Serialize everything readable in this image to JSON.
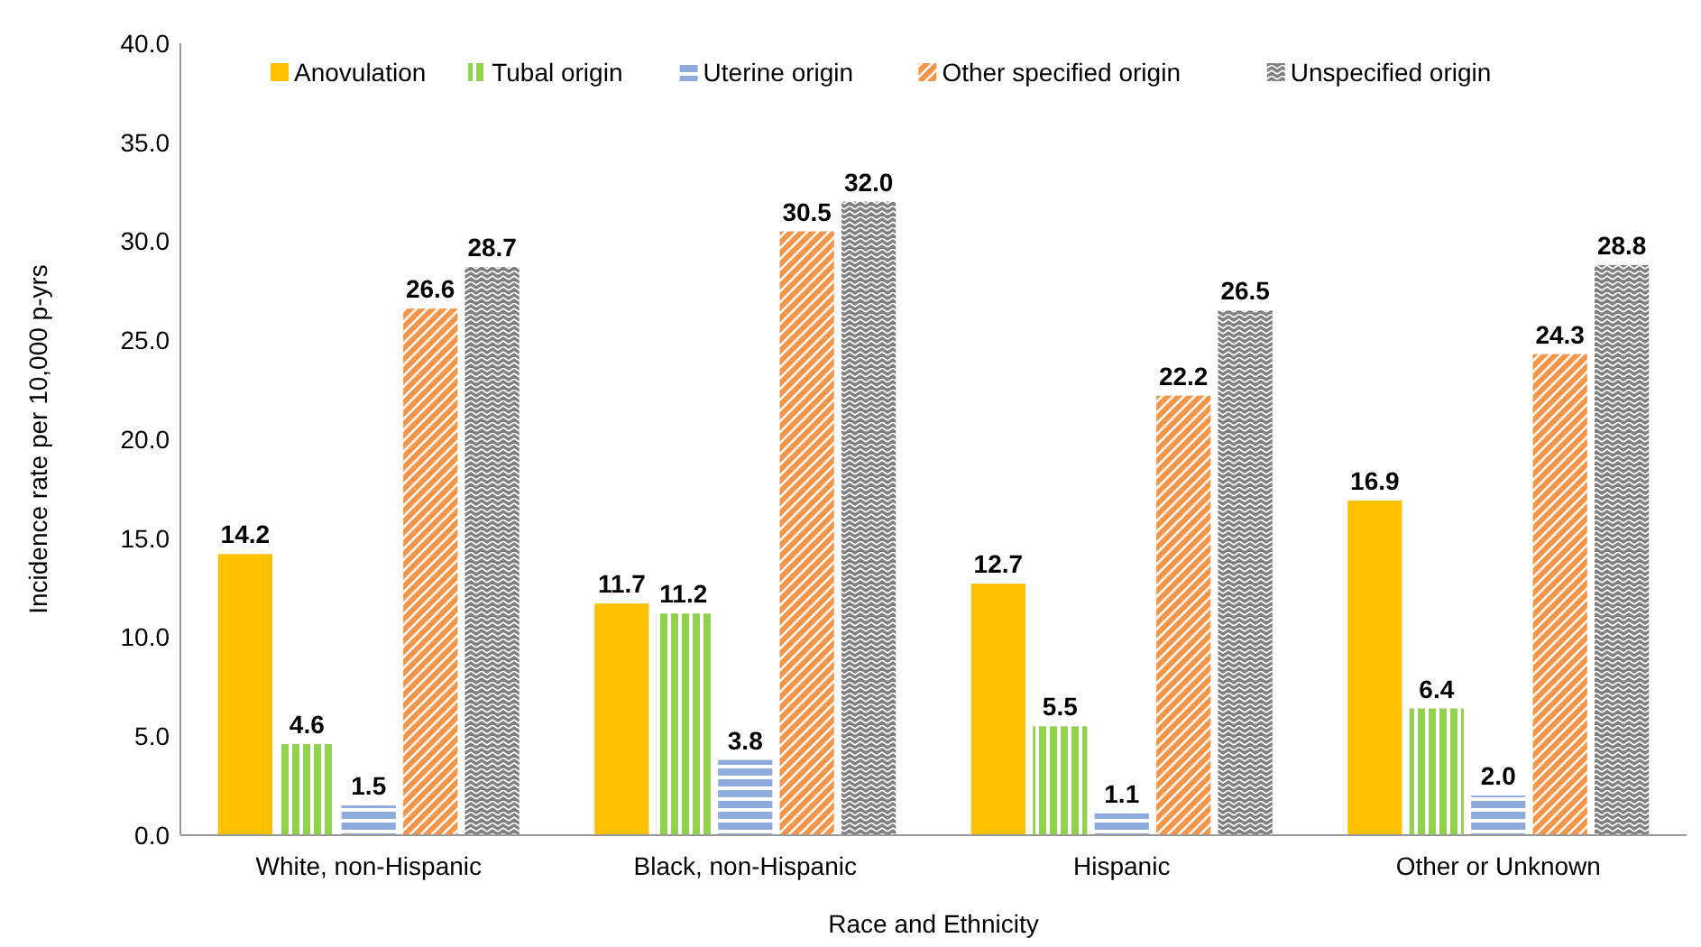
{
  "chart_data": {
    "type": "bar",
    "xlabel": "Race and Ethnicity",
    "ylabel": "Incidence rate per 10,000 p-yrs",
    "categories": [
      "White, non-Hispanic",
      "Black, non-Hispanic",
      "Hispanic",
      "Other or Unknown"
    ],
    "series": [
      {
        "name": "Anovulation",
        "color": "#ffc000",
        "values": [
          14.2,
          11.7,
          12.7,
          16.9
        ],
        "value_labels": [
          "14.2",
          "11.7",
          "12.7",
          "16.9"
        ]
      },
      {
        "name": "Tubal origin",
        "color": "#92d050",
        "values": [
          4.6,
          11.2,
          5.5,
          6.4
        ],
        "value_labels": [
          "4.6",
          "11.2",
          "5.5",
          "6.4"
        ]
      },
      {
        "name": "Uterine origin",
        "color": "#8faadc",
        "values": [
          1.5,
          3.8,
          1.1,
          2.0
        ],
        "value_labels": [
          "1.5",
          "3.8",
          "1.1",
          "2.0"
        ]
      },
      {
        "name": "Other specified origin",
        "color": "#f4954a",
        "values": [
          26.6,
          30.5,
          22.2,
          24.3
        ],
        "value_labels": [
          "26.6",
          "30.5",
          "22.2",
          "24.3"
        ]
      },
      {
        "name": "Unspecified origin",
        "color": "#7f7f7f",
        "values": [
          28.7,
          32.0,
          26.5,
          28.8
        ],
        "value_labels": [
          "28.7",
          "32.0",
          "26.5",
          "28.8"
        ]
      }
    ],
    "ylim": [
      0,
      40
    ],
    "yticks": [
      {
        "value": 0,
        "label": "0.0"
      },
      {
        "value": 5,
        "label": "5.0"
      },
      {
        "value": 10,
        "label": "10.0"
      },
      {
        "value": 15,
        "label": "15.0"
      },
      {
        "value": 20,
        "label": "20.0"
      },
      {
        "value": 25,
        "label": "25.0"
      },
      {
        "value": 30,
        "label": "30.0"
      },
      {
        "value": 35,
        "label": "35.0"
      },
      {
        "value": 40,
        "label": "40.0"
      }
    ],
    "grid": false,
    "legend": "top"
  }
}
